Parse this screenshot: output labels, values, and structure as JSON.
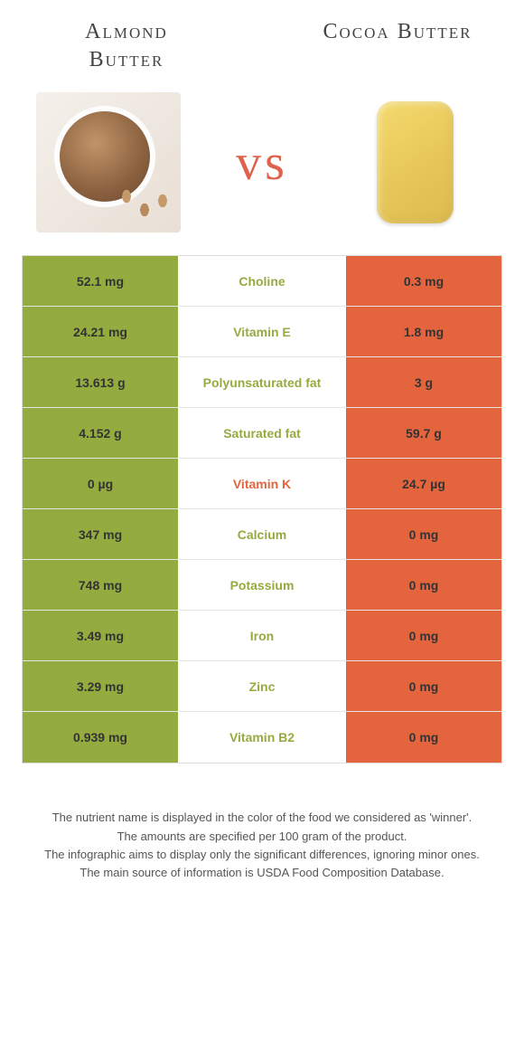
{
  "colors": {
    "left_bg": "#94ab3f",
    "right_bg": "#e4643d",
    "left_text": "#94ab3f",
    "right_text": "#e4643d"
  },
  "titles": {
    "left": "Almond Butter",
    "right": "Cocoa Butter",
    "vs": "vs"
  },
  "rows": [
    {
      "nutrient": "Choline",
      "left": "52.1 mg",
      "right": "0.3 mg",
      "winner": "left"
    },
    {
      "nutrient": "Vitamin E",
      "left": "24.21 mg",
      "right": "1.8 mg",
      "winner": "left"
    },
    {
      "nutrient": "Polyunsaturated fat",
      "left": "13.613 g",
      "right": "3 g",
      "winner": "left"
    },
    {
      "nutrient": "Saturated fat",
      "left": "4.152 g",
      "right": "59.7 g",
      "winner": "left"
    },
    {
      "nutrient": "Vitamin K",
      "left": "0 µg",
      "right": "24.7 µg",
      "winner": "right"
    },
    {
      "nutrient": "Calcium",
      "left": "347 mg",
      "right": "0 mg",
      "winner": "left"
    },
    {
      "nutrient": "Potassium",
      "left": "748 mg",
      "right": "0 mg",
      "winner": "left"
    },
    {
      "nutrient": "Iron",
      "left": "3.49 mg",
      "right": "0 mg",
      "winner": "left"
    },
    {
      "nutrient": "Zinc",
      "left": "3.29 mg",
      "right": "0 mg",
      "winner": "left"
    },
    {
      "nutrient": "Vitamin B2",
      "left": "0.939 mg",
      "right": "0 mg",
      "winner": "left"
    }
  ],
  "footer": [
    "The nutrient name is displayed in the color of the food we considered as 'winner'.",
    "The amounts are specified per 100 gram of the product.",
    "The infographic aims to display only the significant differences, ignoring minor ones.",
    "The main source of information is USDA Food Composition Database."
  ]
}
